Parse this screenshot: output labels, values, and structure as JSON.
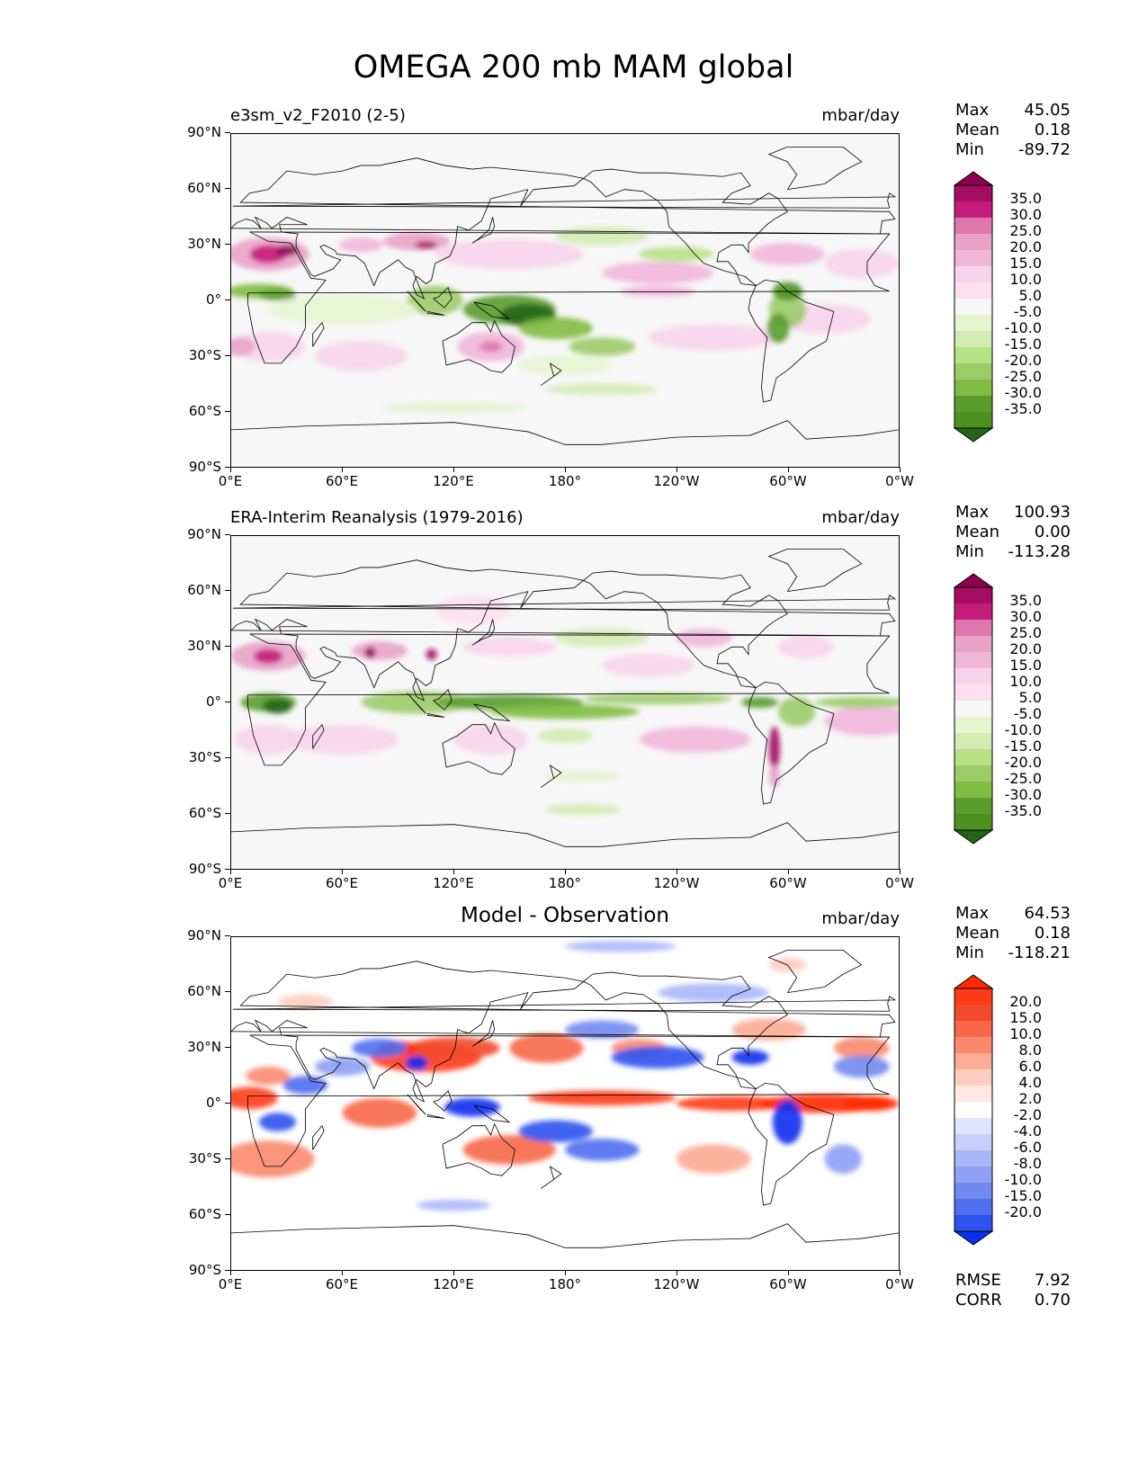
{
  "title": "OMEGA 200 mb MAM global",
  "x_ticks": [
    "0°E",
    "60°E",
    "120°E",
    "180°",
    "120°W",
    "60°W",
    "0°W"
  ],
  "y_ticks": [
    "90°N",
    "60°N",
    "30°N",
    "0°",
    "30°S",
    "60°S",
    "90°S"
  ],
  "panels": [
    {
      "name": "e3sm_v2_F2010 (2-5)",
      "units": "mbar/day",
      "stats": {
        "max_label": "Max",
        "max": "45.05",
        "mean_label": "Mean",
        "mean": "0.18",
        "min_label": "Min",
        "min": "-89.72"
      },
      "colorbar": {
        "labels": [
          "35.0",
          "30.0",
          "25.0",
          "20.0",
          "15.0",
          "10.0",
          "5.0",
          "-5.0",
          "-10.0",
          "-15.0",
          "-20.0",
          "-25.0",
          "-30.0",
          "-35.0"
        ],
        "colors": [
          "#8e0152",
          "#a30e62",
          "#c51b7d",
          "#de77ae",
          "#e9a3c9",
          "#f1b6da",
          "#f7d4ea",
          "#fde0ef",
          "#f7f7f7",
          "#e6f5d0",
          "#d1ebb2",
          "#b8e186",
          "#9ccb6a",
          "#7fbc41",
          "#5a9c2f",
          "#4d9221",
          "#276419"
        ]
      },
      "pattern": "model"
    },
    {
      "name": "ERA-Interim Reanalysis (1979-2016)",
      "units": "mbar/day",
      "stats": {
        "max_label": "Max",
        "max": "100.93",
        "mean_label": "Mean",
        "mean": "0.00",
        "min_label": "Min",
        "min": "-113.28"
      },
      "colorbar": {
        "labels": [
          "35.0",
          "30.0",
          "25.0",
          "20.0",
          "15.0",
          "10.0",
          "5.0",
          "-5.0",
          "-10.0",
          "-15.0",
          "-20.0",
          "-25.0",
          "-30.0",
          "-35.0"
        ],
        "colors": [
          "#8e0152",
          "#a30e62",
          "#c51b7d",
          "#de77ae",
          "#e9a3c9",
          "#f1b6da",
          "#f7d4ea",
          "#fde0ef",
          "#f7f7f7",
          "#e6f5d0",
          "#d1ebb2",
          "#b8e186",
          "#9ccb6a",
          "#7fbc41",
          "#5a9c2f",
          "#4d9221",
          "#276419"
        ]
      },
      "pattern": "obs"
    },
    {
      "name": "Model - Observation",
      "units": "mbar/day",
      "stats": {
        "max_label": "Max",
        "max": "64.53",
        "mean_label": "Mean",
        "mean": "0.18",
        "min_label": "Min",
        "min": "-118.21"
      },
      "colorbar": {
        "labels": [
          "20.0",
          "15.0",
          "10.0",
          "8.0",
          "6.0",
          "4.0",
          "2.0",
          "-2.0",
          "-4.0",
          "-6.0",
          "-8.0",
          "-10.0",
          "-15.0",
          "-20.0"
        ],
        "colors": [
          "#ff2a00",
          "#ff3c14",
          "#f24a2e",
          "#f76848",
          "#fa8a6e",
          "#fcab94",
          "#fdcdc0",
          "#fee8e2",
          "#ffffff",
          "#e0e6fd",
          "#c6d0fb",
          "#a9b7f8",
          "#8e9ff4",
          "#7289f0",
          "#4f6ef0",
          "#2d52ee",
          "#0a2ff0"
        ]
      },
      "pattern": "diff",
      "metrics": {
        "rmse_label": "RMSE",
        "rmse": "7.92",
        "corr_label": "CORR",
        "corr": "0.70"
      }
    }
  ]
}
